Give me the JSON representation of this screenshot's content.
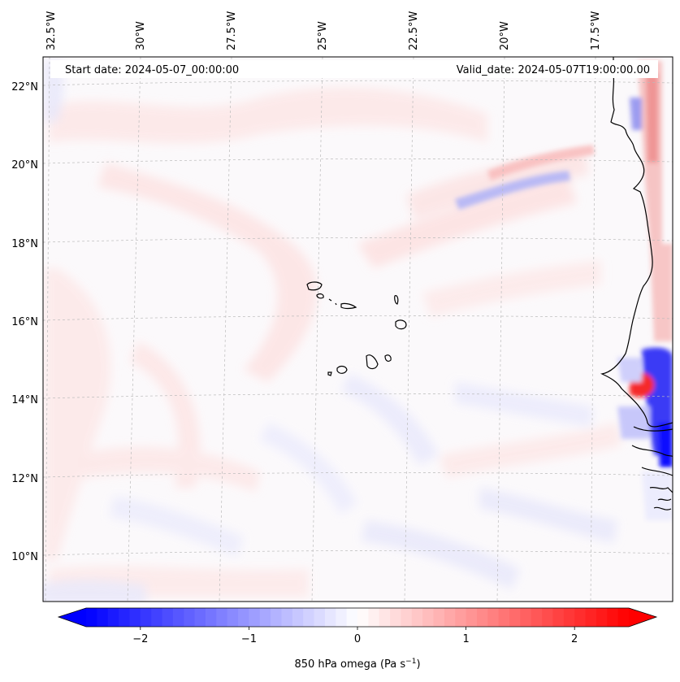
{
  "header": {
    "start_date": "Start date: 2024-05-07_00:00:00",
    "valid_date": "Valid_date: 2024-05-07T19:00:00.00"
  },
  "map": {
    "region": "Cape Verde Islands and West African coast",
    "lon_labels": [
      "32.5°W",
      "30°W",
      "27.5°W",
      "25°W",
      "22.5°W",
      "20°W",
      "17.5°W"
    ],
    "lat_labels": [
      "22°N",
      "20°N",
      "18°N",
      "16°N",
      "14°N",
      "12°N",
      "10°N"
    ],
    "variable": "850 hPa omega"
  },
  "colorbar": {
    "label_main": "850 hPa omega (Pa s",
    "label_sup": "−1",
    "label_end": ")",
    "ticks": [
      "−2",
      "−1",
      "0",
      "1",
      "2"
    ],
    "tick_values": [
      -2,
      -1,
      0,
      1,
      2
    ],
    "range": [
      -2.5,
      2.5
    ],
    "colors": {
      "min": "#0000ff",
      "mid": "#ffffff",
      "max": "#ff0000"
    }
  },
  "colors": {
    "coastline": "#000000",
    "gridline": "#bbbbbb",
    "frame": "#000000"
  }
}
